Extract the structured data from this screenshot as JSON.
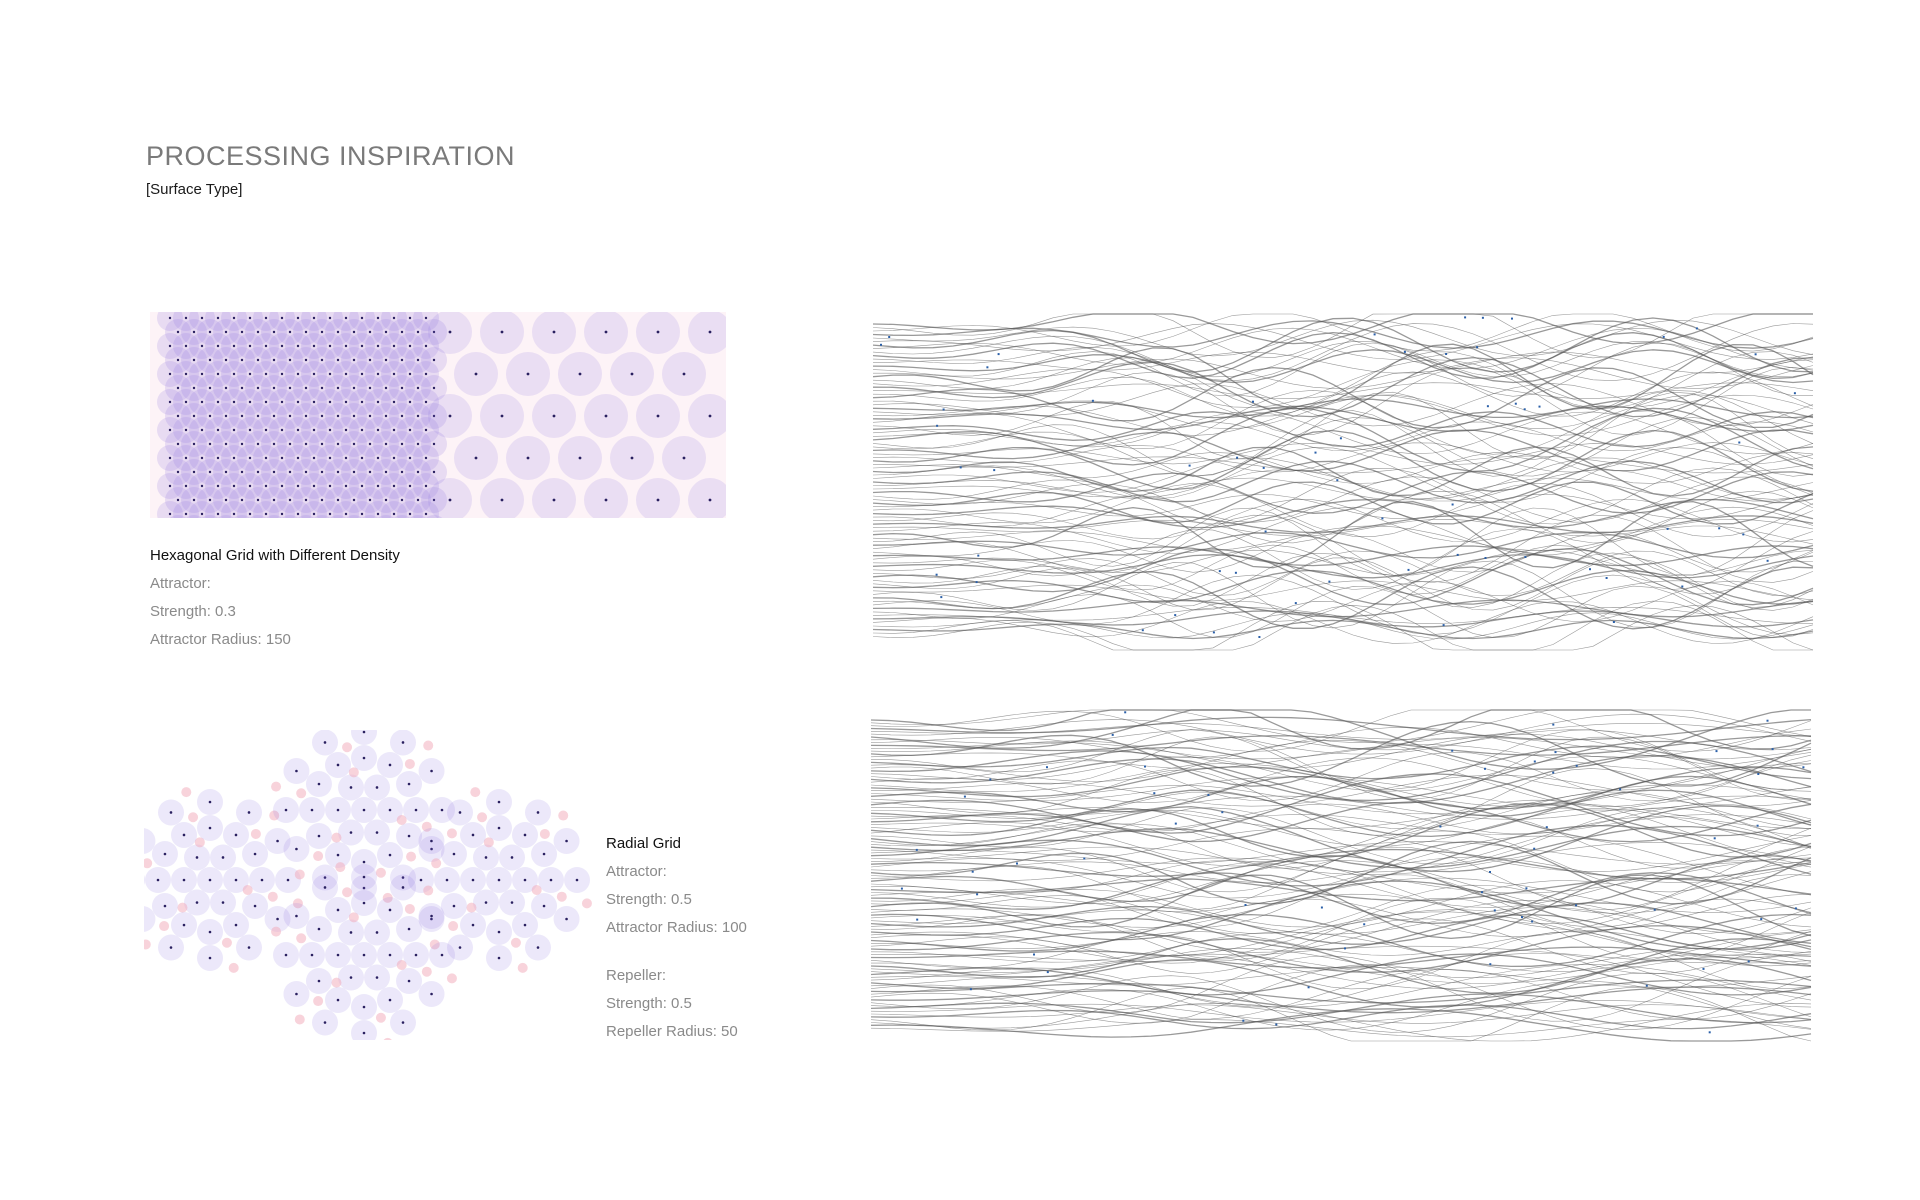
{
  "header": {
    "title": "PROCESSING INSPIRATION",
    "subtitle": "[Surface Type]"
  },
  "hex_panel": {
    "caption_title": "Hexagonal Grid with Different Density",
    "lines": [
      "Attractor:",
      "Strength: 0.3",
      "Attractor Radius: 150"
    ]
  },
  "radial_panel": {
    "caption_title": "Radial Grid",
    "attractor_lines": [
      "Attractor:",
      "Strength: 0.5",
      "Attractor Radius: 100"
    ],
    "repeller_lines": [
      "Repeller:",
      "Strength: 0.5",
      "Repeller Radius: 50"
    ]
  },
  "colors": {
    "title_gray": "#7a7a7a",
    "caption_gray": "#8a8a8a",
    "circle_purple": "#8a6fe0",
    "circle_pink": "#f2a8b8",
    "stream_gray": "#555555",
    "stream_blue": "#2a5fa8"
  }
}
